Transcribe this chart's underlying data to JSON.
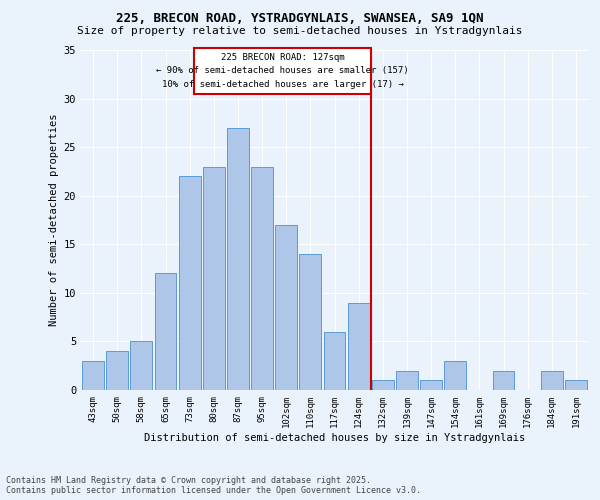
{
  "title1": "225, BRECON ROAD, YSTRADGYNLAIS, SWANSEA, SA9 1QN",
  "title2": "Size of property relative to semi-detached houses in Ystradgynlais",
  "xlabel": "Distribution of semi-detached houses by size in Ystradgynlais",
  "ylabel": "Number of semi-detached properties",
  "categories": [
    "43sqm",
    "50sqm",
    "58sqm",
    "65sqm",
    "73sqm",
    "80sqm",
    "87sqm",
    "95sqm",
    "102sqm",
    "110sqm",
    "117sqm",
    "124sqm",
    "132sqm",
    "139sqm",
    "147sqm",
    "154sqm",
    "161sqm",
    "169sqm",
    "176sqm",
    "184sqm",
    "191sqm"
  ],
  "values": [
    3,
    4,
    5,
    12,
    22,
    23,
    27,
    23,
    17,
    14,
    6,
    9,
    1,
    2,
    1,
    3,
    0,
    2,
    0,
    2,
    1
  ],
  "bar_color": "#aec6e8",
  "bar_edge_color": "#5b9bd5",
  "vline_x": 11.5,
  "vline_color": "#cc0000",
  "annotation_title": "225 BRECON ROAD: 127sqm",
  "annotation_line1": "← 90% of semi-detached houses are smaller (157)",
  "annotation_line2": "10% of semi-detached houses are larger (17) →",
  "annotation_box_color": "#cc0000",
  "ylim": [
    0,
    35
  ],
  "yticks": [
    0,
    5,
    10,
    15,
    20,
    25,
    30,
    35
  ],
  "footer1": "Contains HM Land Registry data © Crown copyright and database right 2025.",
  "footer2": "Contains public sector information licensed under the Open Government Licence v3.0.",
  "bg_color": "#eaf2fb",
  "plot_bg_color": "#eaf2fb"
}
